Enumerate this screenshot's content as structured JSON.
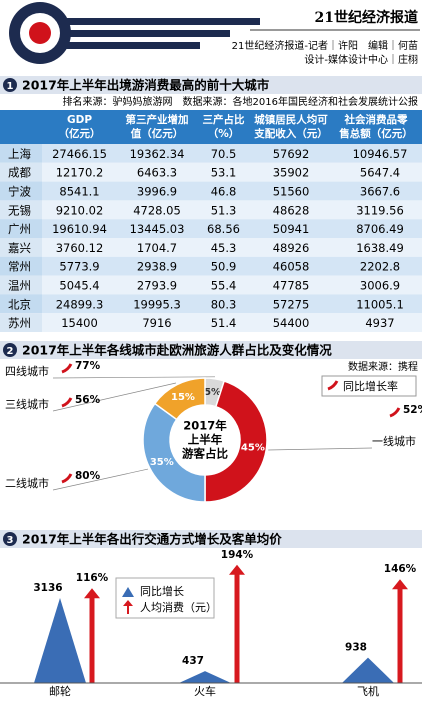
{
  "header": {
    "title": "21世纪经济报道",
    "credit1": "21世纪经济报道-记者｜许阳　编辑｜何苗",
    "credit2": "设计-媒体设计中心｜庄栩"
  },
  "sections": [
    {
      "number": "1",
      "title": "2017年上半年出境游消费最高的前十大城市",
      "note": "排名来源：驴妈妈旅游网　数据来源：各地2016年国民经济和社会发展统计公报"
    },
    {
      "number": "2",
      "title": "2017年上半年各线城市赴欧洲旅游人群占比及变化情况",
      "note": "数据来源：携程"
    },
    {
      "number": "3",
      "title": "2017年上半年各出行交通方式增长及客单均价"
    }
  ],
  "table": {
    "columns": [
      [
        "GDP",
        "（亿元）"
      ],
      [
        "第三产业增加",
        "值（亿元）"
      ],
      [
        "三产占比",
        "（%）"
      ],
      [
        "城镇居民人均可",
        "支配收入（元）"
      ],
      [
        "社会消费品零",
        "售总额（亿元）"
      ]
    ],
    "rows": [
      [
        "上海",
        27466.15,
        19362.34,
        70.5,
        57692,
        10946.57
      ],
      [
        "成都",
        12170.2,
        6463.3,
        53.1,
        35902,
        5647.4
      ],
      [
        "宁波",
        8541.1,
        3996.9,
        46.8,
        51560,
        3667.6
      ],
      [
        "无锡",
        9210.02,
        4728.05,
        51.3,
        48628,
        3119.56
      ],
      [
        "广州",
        19610.94,
        13445.03,
        68.56,
        50941,
        8706.49
      ],
      [
        "嘉兴",
        3760.12,
        1704.7,
        45.3,
        48926,
        1638.49
      ],
      [
        "常州",
        5773.9,
        2938.9,
        50.9,
        46058,
        2202.8
      ],
      [
        "温州",
        5045.4,
        2793.9,
        55.4,
        47785,
        3006.9
      ],
      [
        "北京",
        24899.3,
        19995.3,
        80.3,
        57275,
        11005.1
      ],
      [
        "苏州",
        15400,
        7916,
        51.4,
        54400,
        4937
      ]
    ]
  },
  "chart_data": [
    {
      "type": "pie",
      "center_label": [
        "2017年",
        "上半年",
        "游客占比"
      ],
      "categories": [
        "四线城市",
        "一线城市",
        "二线城市",
        "三线城市"
      ],
      "values": [
        5,
        45,
        35,
        15
      ],
      "value_labels": [
        "5%",
        "45%",
        "35%",
        "15%"
      ],
      "colors": [
        "#d9d9d9",
        "#d0121b",
        "#6fa8dc",
        "#f0a22a"
      ],
      "growth": {
        "name": "同比增长率",
        "values": [
          77,
          52,
          80,
          56
        ],
        "value_labels": [
          "77%",
          "52%",
          "80%",
          "56%"
        ]
      }
    },
    {
      "type": "bar",
      "categories": [
        "邮轮",
        "火车",
        "飞机"
      ],
      "series": [
        {
          "name": "同比增长",
          "color": "#3a6db5",
          "values": [
            3136,
            437,
            938
          ]
        },
        {
          "name": "人均消费（元）",
          "color": "#d7191f",
          "values": [
            116,
            194,
            146
          ],
          "value_labels": [
            "116%",
            "194%",
            "146%"
          ]
        }
      ]
    }
  ]
}
